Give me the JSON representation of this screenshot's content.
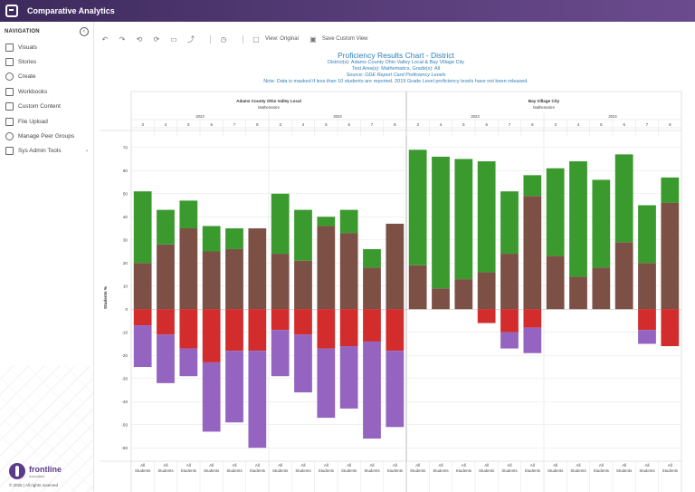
{
  "app": {
    "title": "Comparative Analytics"
  },
  "nav": {
    "heading": "NAVIGATION",
    "items": [
      {
        "label": "Visuals",
        "icon": "visuals-icon"
      },
      {
        "label": "Stories",
        "icon": "stories-icon"
      },
      {
        "label": "Create",
        "icon": "create-icon"
      },
      {
        "label": "Workbooks",
        "icon": "workbooks-icon"
      },
      {
        "label": "Custom Content",
        "icon": "custom-content-icon"
      },
      {
        "label": "File Upload",
        "icon": "file-upload-icon"
      },
      {
        "label": "Manage Peer Groups",
        "icon": "peer-groups-icon"
      },
      {
        "label": "Sys Admin Tools",
        "icon": "sys-admin-icon",
        "chevron": "›"
      }
    ]
  },
  "footer": {
    "brand": "frontline",
    "brand_sub": "education",
    "copyright": "© 2025 | All rights reserved"
  },
  "toolbar": {
    "view_label": "View: Original",
    "save_label": "Save Custom View"
  },
  "chart_data": {
    "type": "bar",
    "title": "Proficiency Results Chart - District",
    "subtitles": [
      "District(s): Adams County Ohio Valley Local & Bay Village City",
      "Test Area(s): Mathematics, Grade(s): All",
      "Source: ODE Report Card Proficiency Levels",
      "Note: Data is masked if less than 10 students are reported. 2019 Grade Level proficiency levels have not been released."
    ],
    "ylabel": "Students %",
    "ylim": [
      -65,
      75
    ],
    "yticks": [
      70,
      60,
      50,
      40,
      30,
      20,
      10,
      0,
      -10,
      -20,
      -30,
      -40,
      -50,
      -60
    ],
    "grid": true,
    "districts": [
      "Adams County Ohio Valley Local",
      "Bay Village City"
    ],
    "subject": "Mathematics",
    "years": [
      "2023",
      "2024"
    ],
    "grades": [
      "3",
      "4",
      "5",
      "6",
      "7",
      "8"
    ],
    "student_group": [
      "All",
      "Students"
    ],
    "colors": {
      "advanced": "#3a9a2e",
      "proficient": "#7d5046",
      "basic": "#d22c2c",
      "limited": "#9464c0"
    },
    "bars": [
      {
        "district": 0,
        "year": "2023",
        "grade": "3",
        "advanced": 31,
        "proficient": 20,
        "basic": 7,
        "limited": 18
      },
      {
        "district": 0,
        "year": "2023",
        "grade": "4",
        "advanced": 15,
        "proficient": 28,
        "basic": 11,
        "limited": 21
      },
      {
        "district": 0,
        "year": "2023",
        "grade": "5",
        "advanced": 12,
        "proficient": 35,
        "basic": 17,
        "limited": 12
      },
      {
        "district": 0,
        "year": "2023",
        "grade": "6",
        "advanced": 11,
        "proficient": 25,
        "basic": 23,
        "limited": 30
      },
      {
        "district": 0,
        "year": "2023",
        "grade": "7",
        "advanced": 9,
        "proficient": 26,
        "basic": 18,
        "limited": 31
      },
      {
        "district": 0,
        "year": "2023",
        "grade": "8",
        "advanced": 0,
        "proficient": 35,
        "basic": 18,
        "limited": 42
      },
      {
        "district": 0,
        "year": "2024",
        "grade": "3",
        "advanced": 26,
        "proficient": 24,
        "basic": 9,
        "limited": 20
      },
      {
        "district": 0,
        "year": "2024",
        "grade": "4",
        "advanced": 22,
        "proficient": 21,
        "basic": 11,
        "limited": 25
      },
      {
        "district": 0,
        "year": "2024",
        "grade": "5",
        "advanced": 4,
        "proficient": 36,
        "basic": 17,
        "limited": 30
      },
      {
        "district": 0,
        "year": "2024",
        "grade": "6",
        "advanced": 10,
        "proficient": 33,
        "basic": 16,
        "limited": 27
      },
      {
        "district": 0,
        "year": "2024",
        "grade": "7",
        "advanced": 8,
        "proficient": 18,
        "basic": 14,
        "limited": 42
      },
      {
        "district": 0,
        "year": "2024",
        "grade": "8",
        "advanced": 0,
        "proficient": 37,
        "basic": 18,
        "limited": 33
      },
      {
        "district": 1,
        "year": "2023",
        "grade": "3",
        "advanced": 50,
        "proficient": 19,
        "basic": 0,
        "limited": 0
      },
      {
        "district": 1,
        "year": "2023",
        "grade": "4",
        "advanced": 57,
        "proficient": 9,
        "basic": 0,
        "limited": 0
      },
      {
        "district": 1,
        "year": "2023",
        "grade": "5",
        "advanced": 52,
        "proficient": 13,
        "basic": 0,
        "limited": 0
      },
      {
        "district": 1,
        "year": "2023",
        "grade": "6",
        "advanced": 48,
        "proficient": 16,
        "basic": 6,
        "limited": 0
      },
      {
        "district": 1,
        "year": "2023",
        "grade": "7",
        "advanced": 27,
        "proficient": 24,
        "basic": 10,
        "limited": 7
      },
      {
        "district": 1,
        "year": "2023",
        "grade": "8",
        "advanced": 9,
        "proficient": 49,
        "basic": 8,
        "limited": 11
      },
      {
        "district": 1,
        "year": "2024",
        "grade": "3",
        "advanced": 38,
        "proficient": 23,
        "basic": 0,
        "limited": 0
      },
      {
        "district": 1,
        "year": "2024",
        "grade": "4",
        "advanced": 50,
        "proficient": 14,
        "basic": 0,
        "limited": 0
      },
      {
        "district": 1,
        "year": "2024",
        "grade": "5",
        "advanced": 38,
        "proficient": 18,
        "basic": 0,
        "limited": 0
      },
      {
        "district": 1,
        "year": "2024",
        "grade": "6",
        "advanced": 38,
        "proficient": 29,
        "basic": 0,
        "limited": 0
      },
      {
        "district": 1,
        "year": "2024",
        "grade": "7",
        "advanced": 25,
        "proficient": 20,
        "basic": 9,
        "limited": 6
      },
      {
        "district": 1,
        "year": "2024",
        "grade": "8",
        "advanced": 11,
        "proficient": 46,
        "basic": 16,
        "limited": 0
      }
    ]
  }
}
